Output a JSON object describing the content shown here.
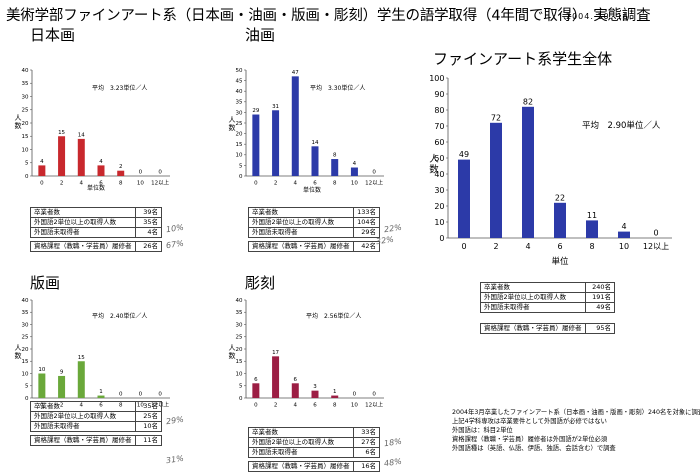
{
  "page": {
    "title": "美術学部ファインアート系（日本画・油画・版画・彫刻）学生の語学取得（4年間で取得）　実態調査",
    "date": "2004. 10. 16"
  },
  "chart_data": [
    {
      "id": "nihonga",
      "type": "bar",
      "title": "日本画",
      "color": "#c8282d",
      "categories": [
        "0",
        "2",
        "4",
        "6",
        "8",
        "10",
        "12以上"
      ],
      "values": [
        4,
        15,
        14,
        4,
        2,
        0,
        0
      ],
      "ylim": [
        0,
        40
      ],
      "yticks": [
        0,
        5,
        10,
        15,
        20,
        25,
        30,
        35,
        40
      ],
      "ylabel": "人数",
      "xlabel": "単位数",
      "avg_text": "平均　3.23単位／人",
      "grid": false
    },
    {
      "id": "yuga",
      "type": "bar",
      "title": "油画",
      "color": "#2c3aa8",
      "categories": [
        "0",
        "2",
        "4",
        "6",
        "8",
        "10",
        "12以上"
      ],
      "values": [
        29,
        31,
        47,
        14,
        8,
        4,
        0
      ],
      "ylim": [
        0,
        50
      ],
      "yticks": [
        0,
        5,
        10,
        15,
        20,
        25,
        30,
        35,
        40,
        45,
        50
      ],
      "ylabel": "人数",
      "xlabel": "単位数",
      "avg_text": "平均　3.30単位／人",
      "grid": false
    },
    {
      "id": "all",
      "type": "bar",
      "title": "ファインアート系学生全体",
      "color": "#2c3aa8",
      "categories": [
        "0",
        "2",
        "4",
        "6",
        "8",
        "10",
        "12以上"
      ],
      "values": [
        49,
        72,
        82,
        22,
        11,
        4,
        0
      ],
      "ylim": [
        0,
        100
      ],
      "yticks": [
        0,
        10,
        20,
        30,
        40,
        50,
        60,
        70,
        80,
        90,
        100
      ],
      "ylabel": "人数",
      "xlabel": "単位",
      "avg_text": "平均　2.90単位／人",
      "grid": false
    },
    {
      "id": "hanga",
      "type": "bar",
      "title": "版画",
      "color": "#6aa83a",
      "categories": [
        "0",
        "2",
        "4",
        "6",
        "8",
        "10",
        "12以上"
      ],
      "values": [
        10,
        9,
        15,
        1,
        0,
        0,
        0
      ],
      "ylim": [
        0,
        40
      ],
      "yticks": [
        0,
        5,
        10,
        15,
        20,
        25,
        30,
        35,
        40
      ],
      "ylabel": "人数",
      "xlabel": "単位数",
      "avg_text": "平均　2.40単位／人",
      "grid": false
    },
    {
      "id": "chokoku",
      "type": "bar",
      "title": "彫刻",
      "color": "#9c1e44",
      "categories": [
        "0",
        "2",
        "4",
        "6",
        "8",
        "10",
        "12以上"
      ],
      "values": [
        6,
        17,
        6,
        3,
        1,
        0,
        0
      ],
      "ylim": [
        0,
        40
      ],
      "yticks": [
        0,
        5,
        10,
        15,
        20,
        25,
        30,
        35,
        40
      ],
      "ylabel": "人数",
      "xlabel": "単位数",
      "avg_text": "平均　2.56単位／人",
      "grid": false
    }
  ],
  "stats": {
    "nihonga": {
      "rows": [
        {
          "label": "卒業者数",
          "value": "39名"
        },
        {
          "label": "外国語2単位以上の取得人数",
          "value": "35名"
        },
        {
          "label": "外国語未取得者",
          "value": "4名"
        }
      ],
      "extra": {
        "label": "資格課程（教職・学芸員）履修者",
        "value": "26名"
      },
      "notes": [
        "10%",
        "67%"
      ]
    },
    "yuga": {
      "rows": [
        {
          "label": "卒業者数",
          "value": "133名"
        },
        {
          "label": "外国語2単位以上の取得人数",
          "value": "104名"
        },
        {
          "label": "外国語未取得者",
          "value": "29名"
        }
      ],
      "extra": {
        "label": "資格課程（教職・学芸員）履修者",
        "value": "42名"
      },
      "notes": [
        "22%",
        "32%"
      ]
    },
    "all": {
      "rows": [
        {
          "label": "卒業者数",
          "value": "240名"
        },
        {
          "label": "外国語2単位以上の取得人数",
          "value": "191名"
        },
        {
          "label": "外国語未取得者",
          "value": "49名"
        }
      ],
      "extra": {
        "label": "資格課程（教職・学芸員）履修者",
        "value": "95名"
      }
    },
    "hanga": {
      "rows": [
        {
          "label": "卒業者数",
          "value": "35名"
        },
        {
          "label": "外国語2単位以上の取得人数",
          "value": "25名"
        },
        {
          "label": "外国語未取得者",
          "value": "10名"
        }
      ],
      "extra": {
        "label": "資格課程（教職・学芸員）履修者",
        "value": "11名"
      },
      "notes": [
        "29%",
        "31%"
      ]
    },
    "chokoku": {
      "rows": [
        {
          "label": "卒業者数",
          "value": "33名"
        },
        {
          "label": "外国語2単位以上の取得人数",
          "value": "27名"
        },
        {
          "label": "外国語未取得者",
          "value": "6名"
        }
      ],
      "extra": {
        "label": "資格課程（教職・学芸員）履修者",
        "value": "16名"
      },
      "notes": [
        "18%",
        "48%"
      ]
    }
  },
  "footnote": [
    "2004年3月卒業したファインアート系（日本画・油画・版画・彫刻）240名を対象に調査",
    "上記4学科専攻は卒業要件として外国語が必修ではない",
    "外国語は：科目2単位",
    "資格課程（教職・学芸員）履修者は外国語が2単位必須",
    "外国語種は（英語、仏語、伊語、独語、会話含む）で調査"
  ]
}
